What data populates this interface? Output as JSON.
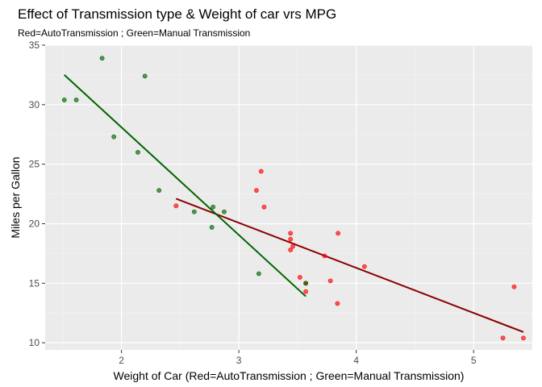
{
  "chart_data": {
    "type": "scatter",
    "title": "Effect of Transmission type & Weight of car vrs MPG",
    "subtitle": "Red=AutoTransmission ; Green=Manual Transmission",
    "xlabel": "Weight of Car (Red=AutoTransmission ; Green=Manual Transmission)",
    "ylabel": "Miles per Gallon",
    "xlim": [
      1.35,
      5.5
    ],
    "ylim": [
      9.4,
      35.0
    ],
    "xticks": [
      2,
      3,
      4,
      5
    ],
    "yticks": [
      10,
      15,
      20,
      25,
      30,
      35
    ],
    "grid": true,
    "series": [
      {
        "color": "#ff0000",
        "fit_color": "#8b0000",
        "x": [
          2.465,
          3.215,
          3.44,
          3.44,
          3.44,
          3.46,
          3.52,
          3.57,
          3.57,
          3.73,
          3.78,
          3.84,
          3.845,
          4.07,
          5.25,
          5.345,
          5.424,
          3.15,
          3.19
        ],
        "y": [
          21.5,
          21.4,
          18.7,
          19.2,
          17.8,
          18.1,
          15.5,
          14.3,
          15.0,
          17.3,
          15.2,
          13.3,
          19.2,
          16.4,
          10.4,
          14.7,
          10.4,
          22.8,
          24.4
        ],
        "fit": {
          "x": [
            2.465,
            5.424
          ],
          "y": [
            22.1,
            10.9
          ]
        }
      },
      {
        "color": "#006400",
        "fit_color": "#006400",
        "x": [
          1.513,
          1.615,
          1.835,
          1.935,
          2.14,
          2.2,
          2.32,
          2.62,
          2.77,
          2.78,
          2.875,
          3.17,
          3.57
        ],
        "y": [
          30.4,
          30.4,
          33.9,
          27.3,
          26.0,
          32.4,
          22.8,
          21.0,
          19.7,
          21.4,
          21.0,
          15.8,
          15.0
        ],
        "fit": {
          "x": [
            1.513,
            3.57
          ],
          "y": [
            32.5,
            13.9
          ]
        }
      }
    ]
  }
}
